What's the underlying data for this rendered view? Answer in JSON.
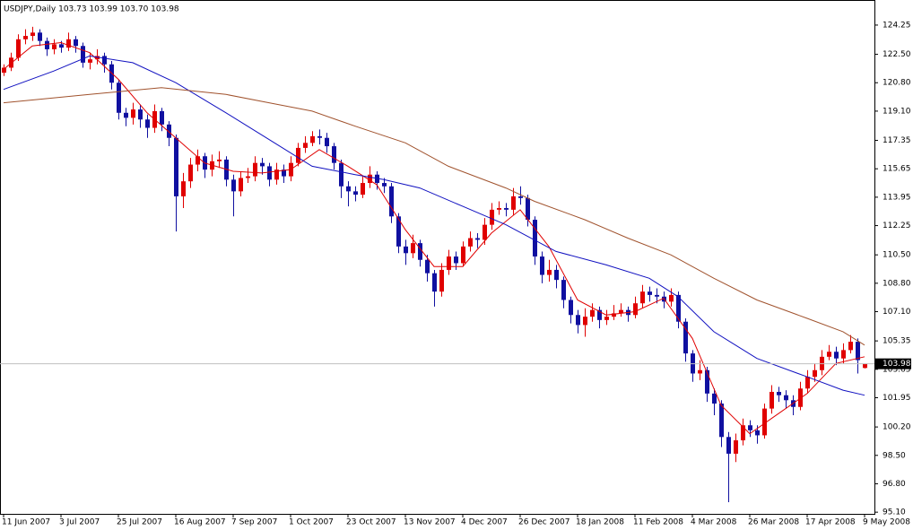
{
  "chart_data": {
    "type": "candlestick",
    "title": "USDJPY,Daily  103.73 103.99 103.70 103.98",
    "up_color": "#e00000",
    "down_color": "#1010a0",
    "x": [
      0,
      2,
      4,
      6,
      8,
      10,
      12,
      14,
      16,
      18,
      20,
      22,
      24,
      26,
      28,
      30,
      32,
      34,
      36,
      38,
      40,
      42,
      44,
      46,
      48,
      50,
      52,
      54,
      56,
      58,
      60,
      62,
      64,
      66,
      68,
      70,
      72,
      74,
      76,
      78,
      80,
      82,
      84,
      86,
      88,
      90,
      92,
      94,
      96,
      98,
      100,
      102,
      104,
      106,
      108,
      110,
      112,
      114,
      116,
      118,
      120,
      122,
      124,
      126,
      128,
      130,
      132,
      134,
      136,
      138,
      140,
      142,
      144,
      146,
      148,
      150,
      152,
      154,
      156,
      158,
      160,
      162,
      164,
      166,
      168,
      170,
      172,
      174,
      176,
      178,
      180,
      182,
      184,
      186,
      188,
      190,
      192,
      194,
      196,
      198,
      200,
      202,
      204,
      206,
      208,
      210,
      212,
      214,
      216,
      218,
      220,
      222,
      224,
      226,
      228,
      230,
      232,
      234,
      236,
      238,
      240
    ],
    "open": [
      121.4,
      121.7,
      122.3,
      123.4,
      123.6,
      123.8,
      123.3,
      122.8,
      123.1,
      122.9,
      123.4,
      123.0,
      122.0,
      122.2,
      122.4,
      121.9,
      120.8,
      119.0,
      118.7,
      119.2,
      118.6,
      118.1,
      119.1,
      118.3,
      117.5,
      114.0,
      114.9,
      115.9,
      116.4,
      115.6,
      116.1,
      116.2,
      115.0,
      114.3,
      115.1,
      115.2,
      116.0,
      115.8,
      115.0,
      115.6,
      115.2,
      116.0,
      116.9,
      117.2,
      117.6,
      117.5,
      117.0,
      116.0,
      114.6,
      114.3,
      114.1,
      114.8,
      115.3,
      114.8,
      114.6,
      112.8,
      111.0,
      110.6,
      111.2,
      110.2,
      109.4,
      108.3,
      109.6,
      110.4,
      110.0,
      111.0,
      111.5,
      111.4,
      112.3,
      113.2,
      113.3,
      113.2,
      114.0,
      113.9,
      112.6,
      110.4,
      109.3,
      109.6,
      109.0,
      107.8,
      106.9,
      106.3,
      106.8,
      107.2,
      106.6,
      106.8,
      107.0,
      107.2,
      106.9,
      107.6,
      108.3,
      108.1,
      108.0,
      107.7,
      108.1,
      106.5,
      104.6,
      103.4,
      103.6,
      102.2,
      101.6,
      99.6,
      98.6,
      99.4,
      100.3,
      100.0,
      99.7,
      101.3,
      102.3,
      102.1,
      101.8,
      101.4,
      102.5,
      103.2,
      103.6,
      104.4,
      104.7,
      104.3,
      104.8,
      105.3,
      103.73
    ],
    "high": [
      121.9,
      122.6,
      123.7,
      124.0,
      124.15,
      124.0,
      123.5,
      123.4,
      123.3,
      123.8,
      123.6,
      123.2,
      122.6,
      122.8,
      122.6,
      122.1,
      121.0,
      119.3,
      119.6,
      119.5,
      118.9,
      119.5,
      119.3,
      118.5,
      117.7,
      115.4,
      116.3,
      116.8,
      116.6,
      116.5,
      116.7,
      116.4,
      115.3,
      115.5,
      115.7,
      116.4,
      116.3,
      116.0,
      116.0,
      115.9,
      116.4,
      117.2,
      117.6,
      117.9,
      118.0,
      117.8,
      117.2,
      116.2,
      114.9,
      114.6,
      115.2,
      115.8,
      115.5,
      115.1,
      114.8,
      113.0,
      111.4,
      111.7,
      111.4,
      110.5,
      109.6,
      110.0,
      110.8,
      110.7,
      111.3,
      111.9,
      111.8,
      112.7,
      113.6,
      113.7,
      113.6,
      114.5,
      114.6,
      114.1,
      112.8,
      110.7,
      110.2,
      109.9,
      109.2,
      108.0,
      107.2,
      107.3,
      107.6,
      107.4,
      107.2,
      107.5,
      107.6,
      107.4,
      108.0,
      108.7,
      108.6,
      108.5,
      108.3,
      108.5,
      108.3,
      106.7,
      104.8,
      104.2,
      103.8,
      102.5,
      101.8,
      99.9,
      99.8,
      100.7,
      100.6,
      100.3,
      101.6,
      102.7,
      102.6,
      102.4,
      102.1,
      102.9,
      103.6,
      104.0,
      104.8,
      105.1,
      105.0,
      105.2,
      105.7,
      105.5,
      103.99
    ],
    "low": [
      121.2,
      121.5,
      122.1,
      123.1,
      123.3,
      123.0,
      122.4,
      122.5,
      122.6,
      122.7,
      122.6,
      121.7,
      121.6,
      121.9,
      121.4,
      120.4,
      118.6,
      118.2,
      118.3,
      118.1,
      117.5,
      117.8,
      117.9,
      117.0,
      111.9,
      113.3,
      114.5,
      115.5,
      115.1,
      115.2,
      115.7,
      114.6,
      112.8,
      114.0,
      114.8,
      114.9,
      115.3,
      114.6,
      114.7,
      114.8,
      114.9,
      115.8,
      116.6,
      117.0,
      117.1,
      116.6,
      115.6,
      113.9,
      113.4,
      113.7,
      113.9,
      114.5,
      114.4,
      114.2,
      112.4,
      110.6,
      109.9,
      110.3,
      109.8,
      108.9,
      107.4,
      108.0,
      109.3,
      109.6,
      109.8,
      110.7,
      110.9,
      111.1,
      112.0,
      112.9,
      112.8,
      112.9,
      113.5,
      112.2,
      109.9,
      108.8,
      108.9,
      108.5,
      107.3,
      106.4,
      105.8,
      105.6,
      106.5,
      106.1,
      106.3,
      106.6,
      106.8,
      106.5,
      106.7,
      107.3,
      107.7,
      107.6,
      107.3,
      107.4,
      106.1,
      104.1,
      102.9,
      103.0,
      101.7,
      100.9,
      99.0,
      95.7,
      98.1,
      99.1,
      99.6,
      99.2,
      99.5,
      101.0,
      101.7,
      101.3,
      100.9,
      101.2,
      102.2,
      102.9,
      103.3,
      104.2,
      103.9,
      104.0,
      104.6,
      103.4,
      103.7
    ],
    "close": [
      121.7,
      122.3,
      123.4,
      123.6,
      123.8,
      123.3,
      122.8,
      123.1,
      122.9,
      123.4,
      123.0,
      122.0,
      122.2,
      122.4,
      121.9,
      120.8,
      119.0,
      118.7,
      119.2,
      118.6,
      118.1,
      119.1,
      118.3,
      117.5,
      114.0,
      114.9,
      115.9,
      116.4,
      115.6,
      116.1,
      116.2,
      115.0,
      114.3,
      115.1,
      115.2,
      116.0,
      115.8,
      115.0,
      115.6,
      115.2,
      116.0,
      116.9,
      117.2,
      117.6,
      117.5,
      117.0,
      116.0,
      114.6,
      114.3,
      114.1,
      114.8,
      115.3,
      114.8,
      114.6,
      112.8,
      111.0,
      110.6,
      111.2,
      110.2,
      109.4,
      108.3,
      109.6,
      110.4,
      110.0,
      111.0,
      111.5,
      111.4,
      112.3,
      113.2,
      113.3,
      113.2,
      114.0,
      113.9,
      112.6,
      110.4,
      109.3,
      109.6,
      109.0,
      107.8,
      106.9,
      106.3,
      106.8,
      107.2,
      106.6,
      106.8,
      107.0,
      107.2,
      106.9,
      107.6,
      108.3,
      108.1,
      108.0,
      107.7,
      108.1,
      106.5,
      104.6,
      103.4,
      103.6,
      102.2,
      101.6,
      99.6,
      98.6,
      99.4,
      100.3,
      100.0,
      99.7,
      101.3,
      102.3,
      102.1,
      101.8,
      101.4,
      102.5,
      103.2,
      103.6,
      104.4,
      104.7,
      104.3,
      104.8,
      105.3,
      104.2,
      103.98
    ],
    "overlays": [
      {
        "color": "#e00000",
        "x": [
          0,
          8,
          16,
          24,
          32,
          40,
          48,
          56,
          64,
          72,
          80,
          88,
          96,
          104,
          112,
          120,
          128,
          136,
          144,
          152,
          160,
          168,
          176,
          184,
          192,
          200,
          208,
          216,
          224,
          232,
          240
        ],
        "values": [
          121.6,
          123.0,
          123.2,
          122.6,
          121.0,
          119.0,
          117.5,
          116.0,
          115.5,
          115.4,
          115.6,
          116.8,
          115.8,
          114.7,
          112.0,
          109.8,
          109.8,
          111.8,
          113.2,
          111.0,
          107.8,
          106.9,
          107.1,
          107.9,
          105.5,
          101.5,
          99.8,
          101.0,
          102.2,
          104.0,
          104.4
        ]
      },
      {
        "color": "#1010c0",
        "x": [
          0,
          14,
          24,
          36,
          48,
          62,
          74,
          86,
          98,
          106,
          116,
          128,
          140,
          154,
          168,
          180,
          188,
          198,
          210,
          224,
          234,
          240
        ],
        "values": [
          120.4,
          121.5,
          122.4,
          122.0,
          120.8,
          119.0,
          117.4,
          115.8,
          115.3,
          115.0,
          114.5,
          113.4,
          112.3,
          110.7,
          109.9,
          109.1,
          108.0,
          105.9,
          104.3,
          103.2,
          102.4,
          102.1
        ]
      },
      {
        "color": "#a0522d",
        "x": [
          0,
          24,
          44,
          62,
          74,
          86,
          98,
          112,
          124,
          140,
          148,
          162,
          174,
          186,
          198,
          210,
          224,
          234,
          240
        ],
        "values": [
          119.6,
          120.1,
          120.5,
          120.1,
          119.6,
          119.1,
          118.2,
          117.2,
          115.8,
          114.5,
          113.7,
          112.6,
          111.5,
          110.5,
          109.1,
          107.8,
          106.7,
          105.9,
          105.1
        ]
      }
    ],
    "xlim": [
      -1,
      242.75
    ],
    "xticks": [
      {
        "value": 0,
        "label": "11 Jun 2007"
      },
      {
        "value": 16,
        "label": "3 Jul 2007"
      },
      {
        "value": 32,
        "label": "25 Jul 2007"
      },
      {
        "value": 48,
        "label": "16 Aug 2007"
      },
      {
        "value": 64,
        "label": "7 Sep 2007"
      },
      {
        "value": 80,
        "label": "1 Oct 2007"
      },
      {
        "value": 96,
        "label": "23 Oct 2007"
      },
      {
        "value": 112,
        "label": "13 Nov 2007"
      },
      {
        "value": 128,
        "label": "4 Dec 2007"
      },
      {
        "value": 144,
        "label": "26 Dec 2007"
      },
      {
        "value": 160,
        "label": "18 Jan 2008"
      },
      {
        "value": 176,
        "label": "11 Feb 2008"
      },
      {
        "value": 192,
        "label": "4 Mar 2008"
      },
      {
        "value": 208,
        "label": "26 Mar 2008"
      },
      {
        "value": 224,
        "label": "17 Apr 2008"
      },
      {
        "value": 240,
        "label": "9 May 2008"
      }
    ],
    "ylim": [
      95.0,
      125.75
    ],
    "yticks": [
      {
        "value": 95.1,
        "label": "95.10"
      },
      {
        "value": 96.8,
        "label": "96.80"
      },
      {
        "value": 98.5,
        "label": "98.50"
      },
      {
        "value": 100.2,
        "label": "100.20"
      },
      101.95,
      103.65,
      105.35,
      {
        "value": 107.1,
        "label": "107.10"
      },
      {
        "value": 108.8,
        "label": "108.80"
      },
      {
        "value": 110.5,
        "label": "110.50"
      },
      112.25,
      113.95,
      115.65,
      117.35,
      {
        "value": 119.1,
        "label": "119.10"
      },
      {
        "value": 120.8,
        "label": "120.80"
      },
      {
        "value": 122.5,
        "label": "122.50"
      },
      124.25
    ],
    "grid": false
  }
}
